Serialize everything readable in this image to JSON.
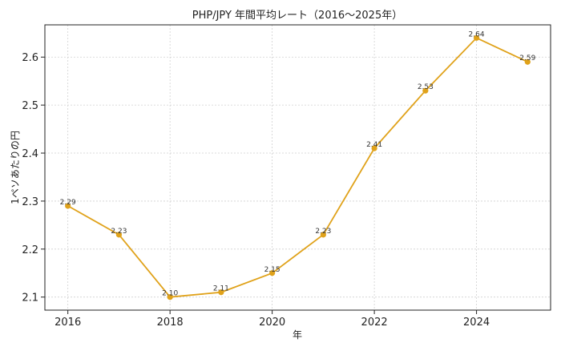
{
  "chart_data": {
    "type": "line",
    "title": "PHP/JPY 年間平均レート（2016〜2025年）",
    "xlabel": "年",
    "ylabel": "1ペソあたりの円",
    "x": [
      2016,
      2017,
      2018,
      2019,
      2020,
      2021,
      2022,
      2023,
      2024,
      2025
    ],
    "values": [
      2.29,
      2.23,
      2.1,
      2.11,
      2.15,
      2.23,
      2.41,
      2.53,
      2.64,
      2.59
    ],
    "data_labels": [
      "2.29",
      "2.23",
      "2.10",
      "2.11",
      "2.15",
      "2.23",
      "2.41",
      "2.53",
      "2.64",
      "2.59"
    ],
    "x_ticks": [
      2016,
      2018,
      2020,
      2022,
      2024
    ],
    "x_tick_labels": [
      "2016",
      "2018",
      "2020",
      "2022",
      "2024"
    ],
    "y_ticks": [
      2.1,
      2.2,
      2.3,
      2.4,
      2.5,
      2.6
    ],
    "y_tick_labels": [
      "2.1",
      "2.2",
      "2.3",
      "2.4",
      "2.5",
      "2.6"
    ],
    "xlim": [
      2015.55,
      2025.45
    ],
    "ylim": [
      2.0728,
      2.6672
    ],
    "grid": true,
    "line_color": "#e0a21a",
    "marker_color": "#e0a21a"
  }
}
